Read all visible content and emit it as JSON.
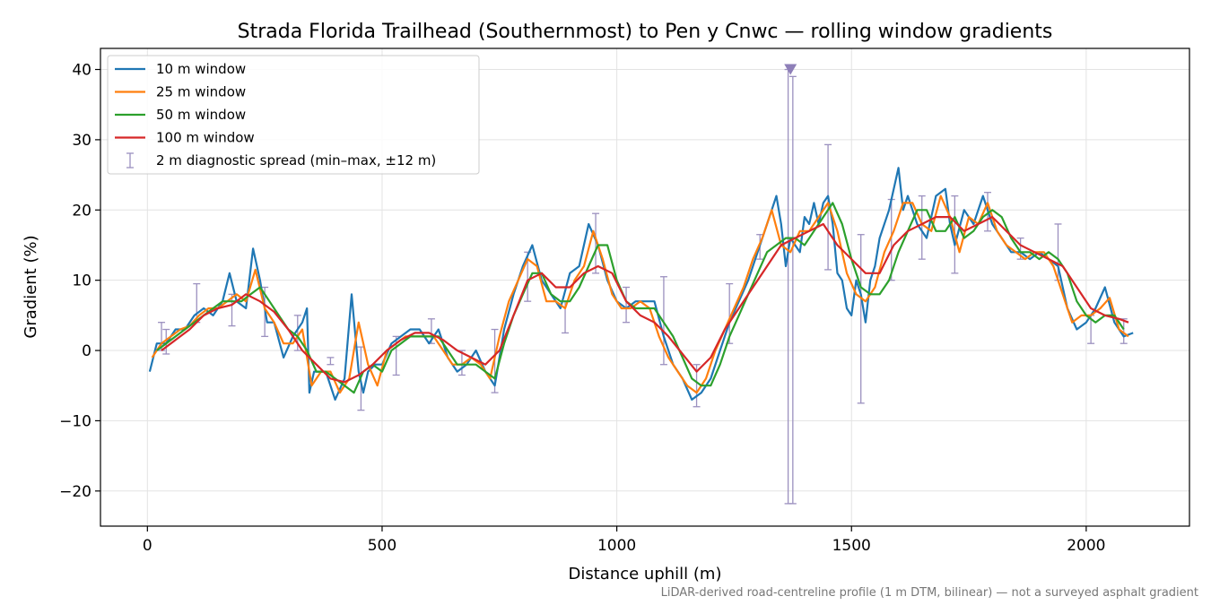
{
  "chart_data": {
    "type": "line",
    "title": "Strada Florida Trailhead (Southernmost) to Pen y Cnwc — rolling window gradients",
    "xlabel": "Distance uphill (m)",
    "ylabel": "Gradient (%)",
    "footnote": "LiDAR-derived road-centreline profile (1 m DTM, bilinear) — not a surveyed asphalt gradient",
    "xlim": [
      -100,
      2220
    ],
    "ylim": [
      -25,
      43
    ],
    "xticks": [
      0,
      500,
      1000,
      1500,
      2000
    ],
    "yticks": [
      -20,
      -10,
      0,
      10,
      20,
      30,
      40
    ],
    "grid": true,
    "legend_position": "top-left",
    "series": [
      {
        "name": "10 m window",
        "color": "#1f77b4",
        "x": [
          5,
          20,
          40,
          60,
          80,
          100,
          120,
          140,
          160,
          175,
          190,
          210,
          225,
          240,
          255,
          270,
          290,
          310,
          330,
          340,
          345,
          355,
          380,
          400,
          420,
          435,
          450,
          460,
          470,
          485,
          500,
          520,
          540,
          560,
          580,
          600,
          620,
          640,
          660,
          680,
          700,
          720,
          740,
          760,
          780,
          800,
          820,
          840,
          860,
          880,
          900,
          920,
          940,
          960,
          980,
          1000,
          1020,
          1040,
          1060,
          1080,
          1100,
          1120,
          1140,
          1160,
          1180,
          1200,
          1220,
          1240,
          1260,
          1280,
          1300,
          1320,
          1340,
          1350,
          1360,
          1370,
          1380,
          1390,
          1400,
          1410,
          1420,
          1430,
          1440,
          1450,
          1460,
          1470,
          1480,
          1490,
          1500,
          1510,
          1520,
          1530,
          1540,
          1550,
          1560,
          1580,
          1600,
          1610,
          1620,
          1640,
          1660,
          1680,
          1700,
          1710,
          1720,
          1740,
          1760,
          1780,
          1800,
          1820,
          1840,
          1860,
          1880,
          1900,
          1920,
          1940,
          1960,
          1980,
          2000,
          2020,
          2040,
          2060,
          2080,
          2100
        ],
        "values": [
          -3,
          1,
          1,
          3,
          3,
          5,
          6,
          5,
          7,
          11,
          7,
          6,
          14.5,
          10,
          4,
          4,
          -1,
          2,
          4,
          6,
          -6,
          -3,
          -3,
          -7,
          -4,
          8,
          -3,
          -6,
          -3,
          -2,
          -2,
          1,
          2,
          3,
          3,
          1,
          3,
          -1,
          -3,
          -2,
          0,
          -3,
          -5,
          3,
          8,
          12,
          15,
          10,
          8,
          6,
          11,
          12,
          18,
          15,
          10,
          7,
          6,
          7,
          7,
          7,
          2,
          -2,
          -4,
          -7,
          -6,
          -4,
          0,
          4,
          7,
          10,
          14,
          18,
          22,
          18,
          12,
          16,
          15,
          14,
          19,
          18,
          21,
          18,
          21,
          22,
          18,
          11,
          10,
          6,
          5,
          10,
          8,
          4,
          10,
          12,
          16,
          20,
          26,
          20,
          22,
          18,
          16,
          22,
          23,
          18,
          15,
          20,
          18,
          22,
          18,
          16,
          14,
          14,
          13,
          14,
          13,
          12,
          6,
          3,
          4,
          6,
          9,
          4,
          2,
          2.5
        ]
      },
      {
        "name": "25 m window",
        "color": "#ff7f0e",
        "x": [
          10,
          30,
          50,
          70,
          90,
          110,
          130,
          150,
          170,
          190,
          210,
          230,
          250,
          270,
          290,
          310,
          330,
          350,
          370,
          390,
          410,
          430,
          450,
          470,
          490,
          510,
          530,
          550,
          570,
          590,
          610,
          630,
          650,
          670,
          690,
          710,
          730,
          750,
          770,
          790,
          810,
          830,
          850,
          870,
          890,
          910,
          930,
          950,
          970,
          990,
          1010,
          1030,
          1050,
          1070,
          1090,
          1110,
          1130,
          1150,
          1170,
          1190,
          1210,
          1230,
          1250,
          1270,
          1290,
          1310,
          1330,
          1350,
          1370,
          1390,
          1410,
          1430,
          1450,
          1470,
          1490,
          1510,
          1530,
          1550,
          1570,
          1590,
          1610,
          1630,
          1650,
          1670,
          1690,
          1710,
          1730,
          1750,
          1770,
          1790,
          1810,
          1830,
          1850,
          1870,
          1890,
          1910,
          1930,
          1950,
          1970,
          1990,
          2010,
          2030,
          2050,
          2070,
          2090
        ],
        "values": [
          -1,
          1,
          2,
          3,
          3.5,
          5,
          6,
          6,
          7,
          8,
          7,
          11.5,
          6,
          4,
          1,
          1,
          3,
          -5,
          -3,
          -3,
          -6,
          -4,
          4,
          -2,
          -5,
          0,
          1,
          2,
          2,
          2,
          2,
          0,
          -2,
          -2,
          -1,
          -2,
          -4,
          2,
          7,
          10,
          13,
          12,
          7,
          7,
          6,
          10,
          12,
          17,
          13,
          8,
          6,
          6,
          7,
          6,
          2,
          -1,
          -3,
          -5,
          -6,
          -4,
          0,
          3,
          6,
          9,
          13,
          16,
          20,
          15,
          14,
          17,
          17,
          19,
          21,
          17,
          11,
          8,
          7,
          9,
          14,
          17,
          21,
          21,
          18,
          17,
          22,
          19,
          14,
          19,
          18,
          21,
          17,
          15,
          14,
          13,
          14,
          14,
          12,
          8,
          4,
          5,
          5,
          6,
          7.5,
          3,
          2
        ]
      },
      {
        "name": "50 m window",
        "color": "#2ca02c",
        "x": [
          20,
          40,
          60,
          80,
          100,
          120,
          140,
          160,
          180,
          200,
          220,
          240,
          260,
          280,
          300,
          320,
          340,
          360,
          380,
          400,
          420,
          440,
          460,
          480,
          500,
          520,
          540,
          560,
          580,
          600,
          620,
          640,
          660,
          680,
          700,
          720,
          740,
          760,
          780,
          800,
          820,
          840,
          860,
          880,
          900,
          920,
          940,
          960,
          980,
          1000,
          1020,
          1040,
          1060,
          1080,
          1100,
          1120,
          1140,
          1160,
          1180,
          1200,
          1220,
          1240,
          1260,
          1280,
          1300,
          1320,
          1340,
          1360,
          1380,
          1400,
          1420,
          1440,
          1460,
          1480,
          1500,
          1520,
          1540,
          1560,
          1580,
          1600,
          1620,
          1640,
          1660,
          1680,
          1700,
          1720,
          1740,
          1760,
          1780,
          1800,
          1820,
          1840,
          1860,
          1880,
          1900,
          1920,
          1940,
          1960,
          1980,
          2000,
          2020,
          2040,
          2060,
          2080
        ],
        "values": [
          0,
          1,
          2,
          3,
          4,
          5,
          6,
          7,
          7,
          7,
          8,
          9,
          7,
          5,
          3,
          2,
          0,
          -3,
          -3,
          -4,
          -5,
          -6,
          -3,
          -2,
          -3,
          0,
          1,
          2,
          2,
          2,
          2,
          0,
          -2,
          -2,
          -2,
          -3,
          -4,
          1,
          5,
          8,
          11,
          11,
          8,
          7,
          7,
          9,
          12,
          15,
          15,
          10,
          7,
          6,
          6,
          6,
          4,
          2,
          -1,
          -4,
          -5,
          -5,
          -2,
          2,
          5,
          8,
          11,
          14,
          15,
          16,
          16,
          15,
          17,
          19,
          21,
          18,
          13,
          9,
          8,
          8,
          10,
          14,
          17,
          20,
          20,
          17,
          17,
          19,
          16,
          17,
          19,
          20,
          19,
          16,
          14,
          14,
          13,
          14,
          13,
          11,
          7,
          5,
          4,
          5,
          5,
          3
        ]
      },
      {
        "name": "100 m window",
        "color": "#d62728",
        "x": [
          30,
          60,
          90,
          120,
          150,
          180,
          210,
          240,
          270,
          300,
          330,
          360,
          390,
          420,
          450,
          480,
          510,
          540,
          570,
          600,
          630,
          660,
          690,
          720,
          750,
          780,
          810,
          840,
          870,
          900,
          930,
          960,
          990,
          1020,
          1050,
          1080,
          1110,
          1140,
          1170,
          1200,
          1230,
          1260,
          1290,
          1320,
          1350,
          1380,
          1410,
          1440,
          1470,
          1500,
          1530,
          1560,
          1590,
          1620,
          1650,
          1680,
          1710,
          1740,
          1770,
          1800,
          1830,
          1860,
          1890,
          1920,
          1950,
          1980,
          2010,
          2040,
          2070,
          2090
        ],
        "values": [
          0,
          1.5,
          3,
          5,
          6,
          6.5,
          8,
          7,
          5.5,
          3,
          0,
          -2,
          -4,
          -4.5,
          -3.5,
          -2,
          0,
          1.5,
          2.5,
          2.5,
          1.5,
          0,
          -1,
          -2,
          0,
          5,
          10,
          11,
          9,
          9,
          11,
          12,
          11,
          7,
          5,
          4,
          2,
          -0.5,
          -3,
          -1,
          3,
          6,
          9,
          12,
          15,
          16,
          17,
          18,
          15,
          13,
          11,
          11,
          15,
          17,
          18,
          19,
          19,
          17,
          18,
          19,
          17,
          15,
          14,
          13,
          12,
          9,
          6,
          5,
          4.5,
          4
        ]
      }
    ],
    "diagnostic_spread": {
      "name": "2 m diagnostic spread (min–max, ±12 m)",
      "color": "#9b90bf",
      "bars": [
        {
          "x": 30,
          "low": 0,
          "high": 4
        },
        {
          "x": 40,
          "low": -0.5,
          "high": 3
        },
        {
          "x": 105,
          "low": 4,
          "high": 9.5
        },
        {
          "x": 180,
          "low": 3.5,
          "high": 8
        },
        {
          "x": 250,
          "low": 2,
          "high": 9
        },
        {
          "x": 320,
          "low": 0,
          "high": 5
        },
        {
          "x": 390,
          "low": -2,
          "high": -1
        },
        {
          "x": 455,
          "low": -8.5,
          "high": 0.5
        },
        {
          "x": 530,
          "low": -3.5,
          "high": 2
        },
        {
          "x": 605,
          "low": 1,
          "high": 4.5
        },
        {
          "x": 670,
          "low": -3.5,
          "high": 0
        },
        {
          "x": 740,
          "low": -6,
          "high": 3
        },
        {
          "x": 810,
          "low": 7,
          "high": 14
        },
        {
          "x": 890,
          "low": 2.5,
          "high": 7
        },
        {
          "x": 955,
          "low": 11,
          "high": 19.5
        },
        {
          "x": 1020,
          "low": 4,
          "high": 9
        },
        {
          "x": 1100,
          "low": -2,
          "high": 10.5
        },
        {
          "x": 1170,
          "low": -8,
          "high": -2
        },
        {
          "x": 1240,
          "low": 1,
          "high": 9.5
        },
        {
          "x": 1305,
          "low": 13,
          "high": 16.5
        },
        {
          "x": 1365,
          "low": -21.8,
          "high": 40
        },
        {
          "x": 1375,
          "low": -21.8,
          "high": 39
        },
        {
          "x": 1450,
          "low": 11.5,
          "high": 29.3
        },
        {
          "x": 1520,
          "low": -7.5,
          "high": 16.5
        },
        {
          "x": 1585,
          "low": 10,
          "high": 21.5
        },
        {
          "x": 1650,
          "low": 13,
          "high": 22
        },
        {
          "x": 1720,
          "low": 11,
          "high": 22
        },
        {
          "x": 1790,
          "low": 17,
          "high": 22.5
        },
        {
          "x": 1860,
          "low": 13,
          "high": 16
        },
        {
          "x": 1940,
          "low": 10,
          "high": 18
        },
        {
          "x": 2010,
          "low": 1,
          "high": 5
        },
        {
          "x": 2080,
          "low": 1,
          "high": 4.5
        }
      ],
      "marker": {
        "x": 1370,
        "y": 40
      }
    }
  }
}
